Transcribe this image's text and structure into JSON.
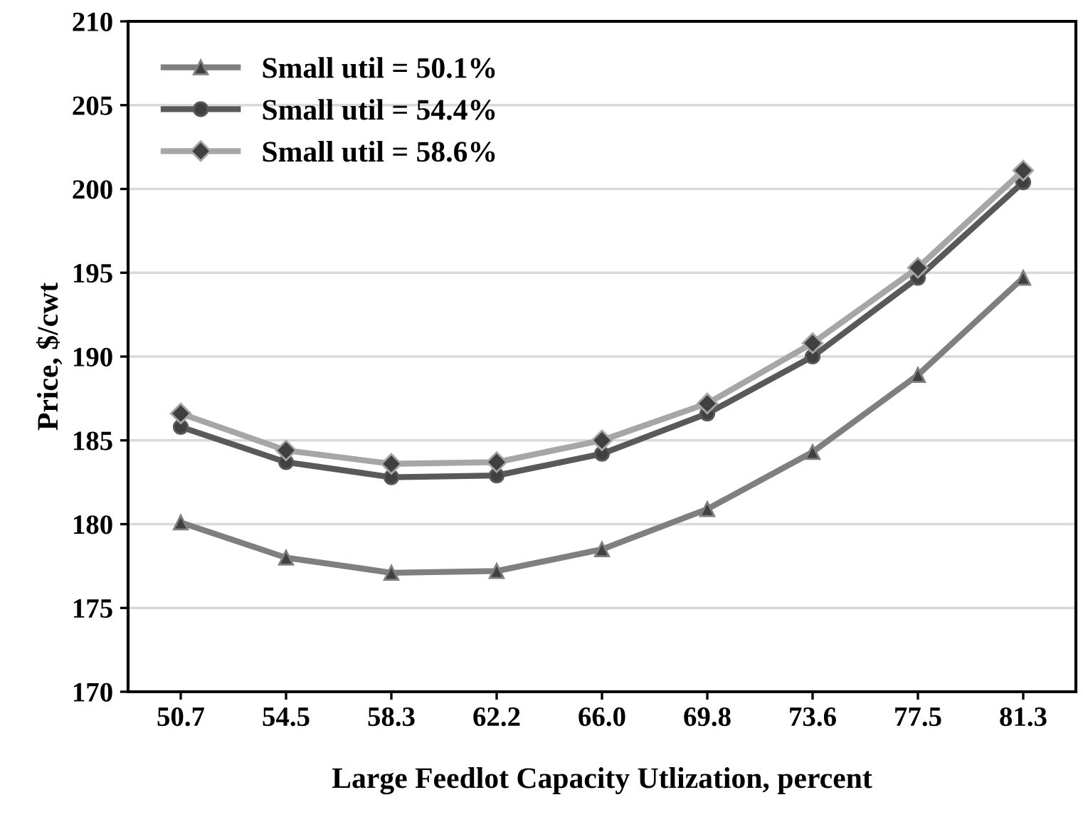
{
  "chart_data": {
    "type": "line",
    "xlabel": "Large Feedlot Capacity Utlization, percent",
    "ylabel": "Price, $/cwt",
    "categories": [
      "50.7",
      "54.5",
      "58.3",
      "62.2",
      "66.0",
      "69.8",
      "73.6",
      "77.5",
      "81.3"
    ],
    "series": [
      {
        "name": "Small util = 50.1%",
        "color": "#7f7f7f",
        "marker": "triangle",
        "values": [
          180.1,
          178.0,
          177.1,
          177.2,
          178.5,
          180.9,
          184.3,
          188.9,
          194.7
        ]
      },
      {
        "name": "Small util = 54.4%",
        "color": "#595959",
        "marker": "circle",
        "values": [
          185.8,
          183.7,
          182.8,
          182.9,
          184.2,
          186.6,
          190.0,
          194.7,
          200.4
        ]
      },
      {
        "name": "Small util = 58.6%",
        "color": "#a6a6a6",
        "marker": "diamond",
        "values": [
          186.6,
          184.4,
          183.6,
          183.7,
          185.0,
          187.2,
          190.8,
          195.3,
          201.1
        ]
      }
    ],
    "ylim": [
      170,
      210
    ],
    "yticks": [
      170,
      175,
      180,
      185,
      190,
      195,
      200,
      205,
      210
    ],
    "grid": "y",
    "legend": "top left"
  }
}
